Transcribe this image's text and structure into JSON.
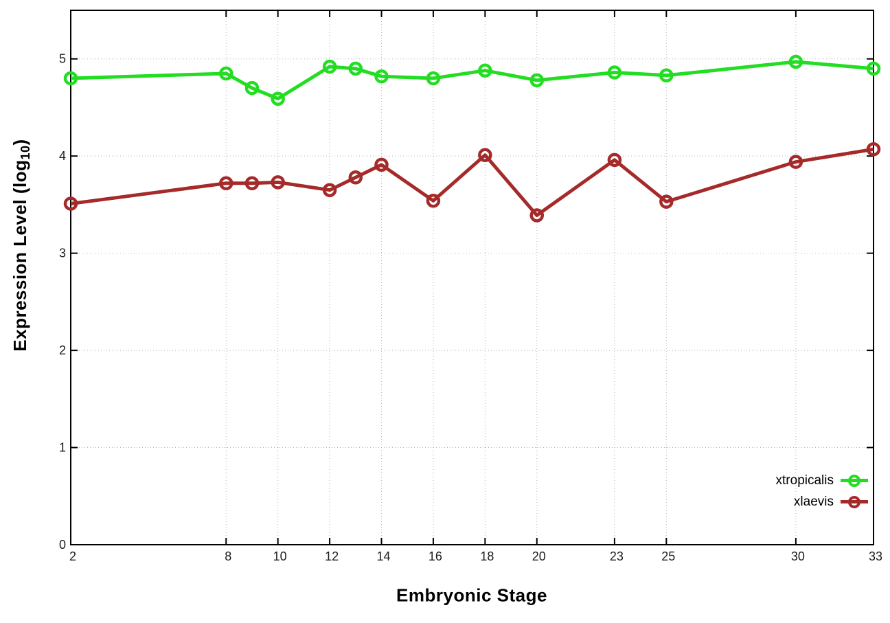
{
  "chart_data": {
    "type": "line",
    "title": "",
    "xlabel": "Embryonic Stage",
    "ylabel_main": "Expression Level (log",
    "ylabel_sub": "10",
    "ylabel_close": ")",
    "x": [
      2,
      8,
      9,
      10,
      12,
      13,
      14,
      16,
      18,
      20,
      23,
      25,
      30,
      33
    ],
    "xticks": [
      2,
      8,
      10,
      12,
      14,
      16,
      18,
      20,
      23,
      25,
      30,
      33
    ],
    "yticks": [
      0,
      1,
      2,
      3,
      4,
      5
    ],
    "xlim": [
      2,
      33
    ],
    "ylim": [
      0,
      5.5
    ],
    "grid": true,
    "grid_style": "dotted",
    "legend_position": "bottom-right-inside",
    "series": [
      {
        "name": "xtropicalis",
        "color": "#22dd22",
        "marker": "open-circle",
        "values": [
          4.8,
          4.85,
          4.7,
          4.59,
          4.92,
          4.9,
          4.82,
          4.8,
          4.88,
          4.78,
          4.86,
          4.83,
          4.97,
          4.9
        ]
      },
      {
        "name": "xlaevis",
        "color": "#a52a2a",
        "marker": "open-circle",
        "values": [
          3.51,
          3.72,
          3.72,
          3.73,
          3.65,
          3.78,
          3.91,
          3.54,
          4.01,
          3.39,
          3.96,
          3.53,
          3.94,
          4.07
        ]
      }
    ],
    "colors": {
      "background": "#ffffff",
      "border": "#000000",
      "grid": "#b5b5b5",
      "tick_text": "#1c1c1c"
    }
  }
}
